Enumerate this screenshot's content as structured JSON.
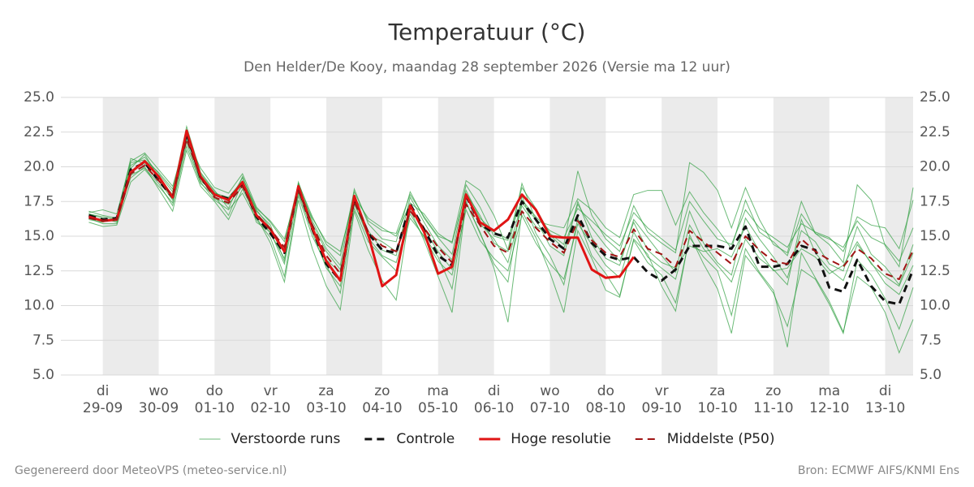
{
  "chart_data": {
    "type": "line",
    "title": "Temperatuur (°C)",
    "subtitle": "Den Helder/De Kooy, maandag 28 september 2026 (Versie ma 12 uur)",
    "footer_left": "Gegenereerd door MeteoVPS (meteo-service.nl)",
    "footer_right": "Bron: ECMWF AIFS/KNMI Ens",
    "categories": [
      null,
      "di\n29-09",
      null,
      null,
      null,
      "wo\n30-09",
      null,
      null,
      null,
      "do\n01-10",
      null,
      null,
      null,
      "vr\n02-10",
      null,
      null,
      null,
      "za\n03-10",
      null,
      null,
      null,
      "zo\n04-10",
      null,
      null,
      null,
      "ma\n05-10",
      null,
      null,
      null,
      "di\n06-10",
      null,
      null,
      null,
      "wo\n07-10",
      null,
      null,
      null,
      "do\n08-10",
      null,
      null,
      null,
      "vr\n09-10",
      null,
      null,
      null,
      "za\n10-10",
      null,
      null,
      null,
      "zo\n11-10",
      null,
      null,
      null,
      "ma\n12-10",
      null,
      null,
      null,
      "di\n13-10",
      null,
      null
    ],
    "ylim": [
      5,
      25
    ],
    "yticks": [
      {
        "value": 5,
        "label": "5.0"
      },
      7.5,
      {
        "value": 10,
        "label": "10.0"
      },
      12.5,
      {
        "value": 15,
        "label": "15.0"
      },
      17.5,
      {
        "value": 20,
        "label": "20.0"
      },
      22.5,
      {
        "value": 25,
        "label": "25.0"
      }
    ],
    "grid": true,
    "shade_alternate_days": true,
    "right_axis": true,
    "legend": "bottom",
    "ensemble": {
      "name": "Verstoorde runs",
      "color": "#2e9e3e",
      "members": [
        [
          16.6,
          16.3,
          16.0,
          20.1,
          20.7,
          19.5,
          18.2,
          22.9,
          19.6,
          18.3,
          17.0,
          19.3,
          16.8,
          15.8,
          13.2,
          18.9,
          16.1,
          14.1,
          12.9,
          18.4,
          15.9,
          14.8,
          14.6,
          18.2,
          16.3,
          14.9,
          13.7,
          18.7,
          17.1,
          15.0,
          14.7,
          18.5,
          17.0,
          15.2,
          14.4,
          19.7,
          16.5,
          14.8,
          13.9,
          17.2,
          15.3,
          14.5,
          13.8,
          20.3,
          19.6,
          18.3,
          15.6,
          18.5,
          16.2,
          14.4,
          13.8,
          17.5,
          15.2,
          14.4,
          13.1,
          18.7,
          17.6,
          14.3,
          12.8,
          18.5
        ],
        [
          16.0,
          15.7,
          15.8,
          18.9,
          19.8,
          18.6,
          17.4,
          21.8,
          18.9,
          17.6,
          16.9,
          18.1,
          16.2,
          14.9,
          12.1,
          17.9,
          15.0,
          12.9,
          10.9,
          17.0,
          14.6,
          13.5,
          12.5,
          16.3,
          15.0,
          13.5,
          11.2,
          17.5,
          15.2,
          13.0,
          11.7,
          17.9,
          15.2,
          13.6,
          11.5,
          16.3,
          13.6,
          12.3,
          10.7,
          14.7,
          13.1,
          12.2,
          10.2,
          14.9,
          13.5,
          12.5,
          9.3,
          14.1,
          12.4,
          11.1,
          7.0,
          13.8,
          12.0,
          10.3,
          8.1,
          12.1,
          11.3,
          9.5,
          6.6,
          9.0
        ],
        [
          16.7,
          16.9,
          16.6,
          20.4,
          21.0,
          19.8,
          18.6,
          22.1,
          19.9,
          18.5,
          18.1,
          19.5,
          17.1,
          16.0,
          14.6,
          18.8,
          16.4,
          14.4,
          13.6,
          18.2,
          16.1,
          15.4,
          15.2,
          18.0,
          16.4,
          15.0,
          14.6,
          19.0,
          18.3,
          16.5,
          14.0,
          18.8,
          16.1,
          15.8,
          15.6,
          17.7,
          16.9,
          15.6,
          14.9,
          18.0,
          18.3,
          18.3,
          15.8,
          18.2,
          16.7,
          15.5,
          14.1,
          17.6,
          15.3,
          14.6,
          13.6,
          16.6,
          15.2,
          14.8,
          14.2,
          16.1,
          14.9,
          14.4,
          13.2,
          15.6
        ],
        [
          16.2,
          16.0,
          16.4,
          19.2,
          20.0,
          18.4,
          16.8,
          21.2,
          18.6,
          17.5,
          16.2,
          18.4,
          16.4,
          14.5,
          11.7,
          17.6,
          14.1,
          11.4,
          9.7,
          16.8,
          14.0,
          11.8,
          10.4,
          16.9,
          14.7,
          12.1,
          9.5,
          17.4,
          15.3,
          12.7,
          8.8,
          16.8,
          14.9,
          12.4,
          9.5,
          15.4,
          13.4,
          11.1,
          10.6,
          14.8,
          13.7,
          11.4,
          9.6,
          15.1,
          13.0,
          11.2,
          8.0,
          13.6,
          12.3,
          10.9,
          8.5,
          12.6,
          11.9,
          10.1,
          8.0,
          13.3,
          12.2,
          10.5,
          8.3,
          11.3
        ],
        [
          16.4,
          16.2,
          16.1,
          19.9,
          20.9,
          19.2,
          18.0,
          22.7,
          19.0,
          18.1,
          17.8,
          19.0,
          16.9,
          15.6,
          14.0,
          18.2,
          15.7,
          13.3,
          12.4,
          17.6,
          15.4,
          14.0,
          13.6,
          17.8,
          16.0,
          14.3,
          13.3,
          18.1,
          16.5,
          14.5,
          13.9,
          17.4,
          16.2,
          14.3,
          13.6,
          17.5,
          14.9,
          13.4,
          12.9,
          16.2,
          14.9,
          13.6,
          12.4,
          16.8,
          14.5,
          13.1,
          12.2,
          16.3,
          14.8,
          13.5,
          12.0,
          15.4,
          14.6,
          13.0,
          12.5,
          15.7,
          13.7,
          12.8,
          11.5,
          14.4
        ],
        [
          16.8,
          16.5,
          16.3,
          20.6,
          20.2,
          19.0,
          17.6,
          22.3,
          19.4,
          17.7,
          17.3,
          18.6,
          16.6,
          15.2,
          13.4,
          18.7,
          15.9,
          13.9,
          12.6,
          17.3,
          15.1,
          14.6,
          13.9,
          17.1,
          15.5,
          13.9,
          12.6,
          17.9,
          15.9,
          14.8,
          13.1,
          17.2,
          15.7,
          15.1,
          14.1,
          17.3,
          15.6,
          14.3,
          13.2,
          16.0,
          14.0,
          13.1,
          12.7,
          14.3,
          13.9,
          14.1,
          13.5,
          15.7,
          13.9,
          12.5,
          12.7,
          14.1,
          13.5,
          12.3,
          12.9,
          14.6,
          13.0,
          12.1,
          11.4,
          13.8
        ],
        [
          16.3,
          15.9,
          15.9,
          19.4,
          19.9,
          18.8,
          17.2,
          21.5,
          18.8,
          17.9,
          16.5,
          18.9,
          16.0,
          15.3,
          13.0,
          18.1,
          15.3,
          12.7,
          11.4,
          17.4,
          14.9,
          13.6,
          13.1,
          16.6,
          14.9,
          13.2,
          12.2,
          16.9,
          14.7,
          13.4,
          12.5,
          16.5,
          14.5,
          13.0,
          11.9,
          15.9,
          14.4,
          12.9,
          12.0,
          15.3,
          13.5,
          12.7,
          11.9,
          15.8,
          14.1,
          12.9,
          11.7,
          14.8,
          13.4,
          12.6,
          11.5,
          16.2,
          13.8,
          12.6,
          11.8,
          14.4,
          13.1,
          11.6,
          10.8,
          12.9
        ],
        [
          16.6,
          16.4,
          16.2,
          20.3,
          20.5,
          19.6,
          18.4,
          21.9,
          19.5,
          18.2,
          17.5,
          19.2,
          17.0,
          16.1,
          14.8,
          18.4,
          16.3,
          14.6,
          13.9,
          17.8,
          16.3,
          15.6,
          15.0,
          17.4,
          16.6,
          15.2,
          14.5,
          18.3,
          16.3,
          15.3,
          14.8,
          17.6,
          16.4,
          15.4,
          14.9,
          17.0,
          16.1,
          15.1,
          14.3,
          16.7,
          15.6,
          14.8,
          14.0,
          17.5,
          16.1,
          14.8,
          14.4,
          16.9,
          15.6,
          14.9,
          14.2,
          15.9,
          15.3,
          14.9,
          13.9,
          16.4,
          15.8,
          15.6,
          14.1,
          17.6
        ]
      ]
    },
    "series": [
      {
        "name": "Controle",
        "color": "#111111",
        "dashed": true,
        "width": 3,
        "values": [
          16.5,
          16.2,
          16.3,
          19.8,
          20.3,
          19.0,
          17.8,
          22.4,
          19.2,
          18.0,
          17.7,
          18.8,
          16.4,
          15.2,
          13.8,
          18.5,
          15.5,
          13.0,
          11.8,
          17.7,
          15.2,
          14.0,
          13.8,
          17.3,
          15.5,
          13.6,
          12.9,
          17.9,
          15.9,
          15.2,
          14.9,
          17.5,
          16.2,
          14.8,
          14.1,
          16.5,
          14.5,
          13.6,
          13.3,
          13.5,
          12.4,
          11.8,
          12.6,
          14.3,
          14.3,
          14.3,
          14.1,
          15.7,
          12.8,
          12.8,
          13.0,
          14.3,
          14.0,
          11.3,
          11.0,
          13.3,
          11.4,
          10.3,
          10.1,
          12.6
        ]
      },
      {
        "name": "Hoge resolutie",
        "color": "#e01414",
        "dashed": false,
        "width": 3,
        "values": [
          16.4,
          16.1,
          16.2,
          19.6,
          20.4,
          19.3,
          17.8,
          22.6,
          19.3,
          18.0,
          17.6,
          18.9,
          16.5,
          15.5,
          13.9,
          18.6,
          15.6,
          13.2,
          11.8,
          17.9,
          15.1,
          11.4,
          12.2,
          17.2,
          15.3,
          12.3,
          12.8,
          18.0,
          16.0,
          15.4,
          16.2,
          18.0,
          16.9,
          15.0,
          14.9,
          14.9,
          12.6,
          12.0,
          12.1,
          13.5,
          null,
          null,
          null,
          null,
          null,
          null,
          null,
          null,
          null,
          null,
          null,
          null,
          null,
          null,
          null,
          null,
          null,
          null,
          null,
          null
        ]
      },
      {
        "name": "Middelste (P50)",
        "color": "#a01414",
        "dashed": true,
        "width": 2,
        "values": [
          16.3,
          16.1,
          16.2,
          19.5,
          20.1,
          19.0,
          17.9,
          22.0,
          19.2,
          17.8,
          17.4,
          18.6,
          16.6,
          15.5,
          14.2,
          18.3,
          15.8,
          13.6,
          12.3,
          17.5,
          15.3,
          14.3,
          13.9,
          16.8,
          15.6,
          14.2,
          13.1,
          17.3,
          15.8,
          14.3,
          13.8,
          16.8,
          15.6,
          14.6,
          13.8,
          16.1,
          14.7,
          13.8,
          13.5,
          15.5,
          14.1,
          13.7,
          12.8,
          15.4,
          14.6,
          13.8,
          13.0,
          15.0,
          14.0,
          13.2,
          13.0,
          14.8,
          13.9,
          13.3,
          12.8,
          14.1,
          13.4,
          12.3,
          11.9,
          14.0
        ]
      }
    ]
  }
}
